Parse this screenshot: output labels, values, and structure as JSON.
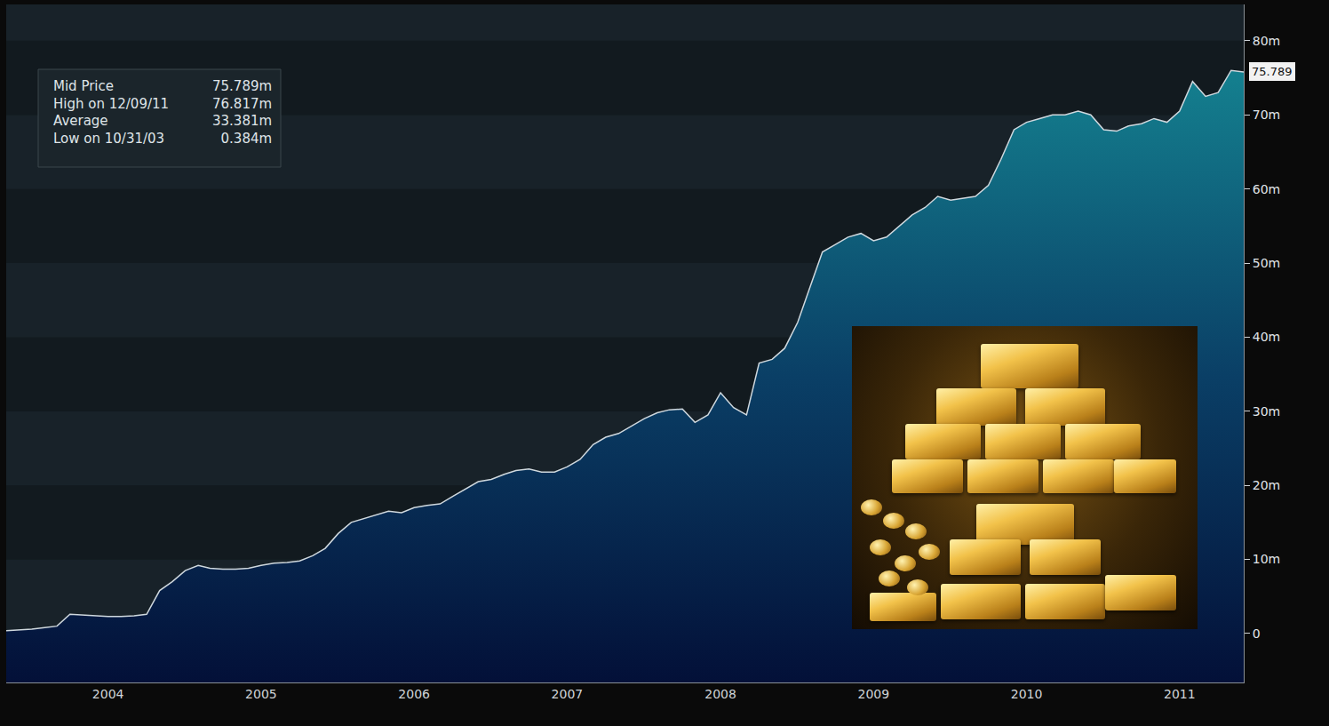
{
  "chart_data": {
    "type": "area",
    "x": [
      "2003-11",
      "2003-12",
      "2004-01",
      "2004-02",
      "2004-03",
      "2004-04",
      "2004-05",
      "2004-06",
      "2004-07",
      "2004-08",
      "2004-09",
      "2004-10",
      "2004-11",
      "2004-12",
      "2005-01",
      "2005-02",
      "2005-03",
      "2005-04",
      "2005-05",
      "2005-06",
      "2005-07",
      "2005-08",
      "2005-09",
      "2005-10",
      "2005-11",
      "2005-12",
      "2006-01",
      "2006-02",
      "2006-03",
      "2006-04",
      "2006-05",
      "2006-06",
      "2006-07",
      "2006-08",
      "2006-09",
      "2006-10",
      "2006-11",
      "2006-12",
      "2007-01",
      "2007-02",
      "2007-03",
      "2007-04",
      "2007-05",
      "2007-06",
      "2007-07",
      "2007-08",
      "2007-09",
      "2007-10",
      "2007-11",
      "2007-12",
      "2008-01",
      "2008-02",
      "2008-03",
      "2008-04",
      "2008-05",
      "2008-06",
      "2008-07",
      "2008-08",
      "2008-09",
      "2008-10",
      "2008-11",
      "2008-12",
      "2009-01",
      "2009-02",
      "2009-03",
      "2009-04",
      "2009-05",
      "2009-06",
      "2009-07",
      "2009-08",
      "2009-09",
      "2009-10",
      "2009-11",
      "2009-12",
      "2010-01",
      "2010-02",
      "2010-03",
      "2010-04",
      "2010-05",
      "2010-06",
      "2010-07",
      "2010-08",
      "2010-09",
      "2010-10",
      "2010-11",
      "2010-12",
      "2011-01",
      "2011-02",
      "2011-03",
      "2011-04",
      "2011-05",
      "2011-06",
      "2011-07",
      "2011-08",
      "2011-09",
      "2011-10",
      "2011-11",
      "2011-12"
    ],
    "values": [
      0.4,
      0.5,
      0.6,
      0.8,
      1.0,
      2.6,
      2.5,
      2.4,
      2.3,
      2.3,
      2.4,
      2.6,
      5.8,
      7.0,
      8.5,
      9.2,
      8.8,
      8.7,
      8.7,
      8.8,
      9.2,
      9.5,
      9.6,
      9.8,
      10.5,
      11.5,
      13.5,
      15.0,
      15.5,
      16.0,
      16.5,
      16.3,
      17.0,
      17.3,
      17.5,
      18.5,
      19.5,
      20.5,
      20.8,
      21.5,
      22.0,
      22.2,
      21.8,
      21.8,
      22.5,
      23.5,
      25.5,
      26.5,
      27.0,
      28.0,
      29.0,
      29.8,
      30.2,
      30.3,
      28.5,
      29.5,
      32.5,
      30.5,
      29.5,
      36.5,
      37.0,
      38.5,
      42.0,
      47.0,
      51.5,
      52.5,
      53.5,
      54.0,
      53.0,
      53.5,
      55.0,
      56.5,
      57.5,
      59.0,
      58.5,
      58.8,
      59.0,
      60.5,
      64.0,
      68.0,
      69.0,
      69.5,
      70.0,
      70.0,
      70.5,
      70.0,
      68.0,
      67.8,
      68.5,
      68.8,
      69.5,
      69.0,
      70.5,
      74.5,
      72.5,
      73.0,
      76.0,
      75.789
    ],
    "color": "#cfd8de",
    "xlim": [
      "2003-11",
      "2011-12"
    ],
    "xticks": [
      {
        "value": "2004-07",
        "label": "2004"
      },
      {
        "value": "2005-07",
        "label": "2005"
      },
      {
        "value": "2006-07",
        "label": "2006"
      },
      {
        "value": "2007-07",
        "label": "2007"
      },
      {
        "value": "2008-07",
        "label": "2008"
      },
      {
        "value": "2009-07",
        "label": "2009"
      },
      {
        "value": "2010-07",
        "label": "2010"
      },
      {
        "value": "2011-07",
        "label": "2011"
      }
    ],
    "ylim": [
      -6.6,
      84.9
    ],
    "yticks": [
      0,
      {
        "value": 10,
        "label": "10m"
      },
      {
        "value": 20,
        "label": "20m"
      },
      {
        "value": 30,
        "label": "30m"
      },
      {
        "value": 40,
        "label": "40m"
      },
      {
        "value": 50,
        "label": "50m"
      },
      {
        "value": 60,
        "label": "60m"
      },
      {
        "value": 70,
        "label": "70m"
      },
      {
        "value": 80,
        "label": "80m"
      }
    ],
    "grid": false,
    "summary": [
      {
        "label": "Mid Price",
        "text": "75.789m"
      },
      {
        "label": "High on 12/09/11",
        "text": "76.817m"
      },
      {
        "label": "Average",
        "text": "33.381m"
      },
      {
        "label": "Low on 10/31/03",
        "text": "0.384m"
      }
    ],
    "last_value": {
      "value": 75.789,
      "label": "75.789"
    }
  }
}
